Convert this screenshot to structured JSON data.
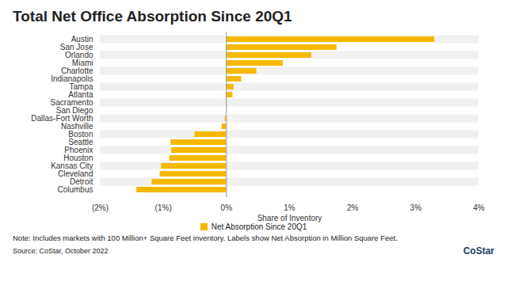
{
  "chart_data": {
    "type": "bar",
    "orientation": "horizontal",
    "title": "Total Net Office Absorption Since 20Q1",
    "x_label": "Share of Inventory",
    "categories": [
      "Austin",
      "San Jose",
      "Orlando",
      "Miami",
      "Charlotte",
      "Indianapolis",
      "Tampa",
      "Atlanta",
      "Sacramento",
      "San Diego",
      "Dallas-Fort Worth",
      "Nashville",
      "Boston",
      "Seattle",
      "Phoenix",
      "Houston",
      "Kansas City",
      "Cleveland",
      "Detroit",
      "Columbus"
    ],
    "series": [
      {
        "name": "Net Absorption Since 20Q1",
        "color": "#f5b800",
        "values": [
          3.3,
          1.75,
          1.35,
          0.9,
          0.48,
          0.24,
          0.12,
          0.1,
          0.01,
          0,
          -0.02,
          -0.07,
          -0.5,
          -0.88,
          -0.87,
          -0.9,
          -1.03,
          -1.05,
          -1.18,
          -1.42
        ]
      }
    ],
    "xlim": [
      -2,
      4
    ],
    "xticks": [
      {
        "value": -2,
        "label": "(2%)"
      },
      {
        "value": -1,
        "label": "(1%)"
      },
      {
        "value": 0,
        "label": "0%"
      },
      {
        "value": 1,
        "label": "1%"
      },
      {
        "value": 2,
        "label": "2%"
      },
      {
        "value": 3,
        "label": "3%"
      },
      {
        "value": 4,
        "label": "4%"
      }
    ],
    "grid": false,
    "legend": "bottom",
    "note": "Note: Includes markets with 100 Million+ Square Feet inventory. Labels show Net Absorption in Million Square Feet.",
    "source": "Source: CoStar, October 2022",
    "logo": "CoStar"
  }
}
